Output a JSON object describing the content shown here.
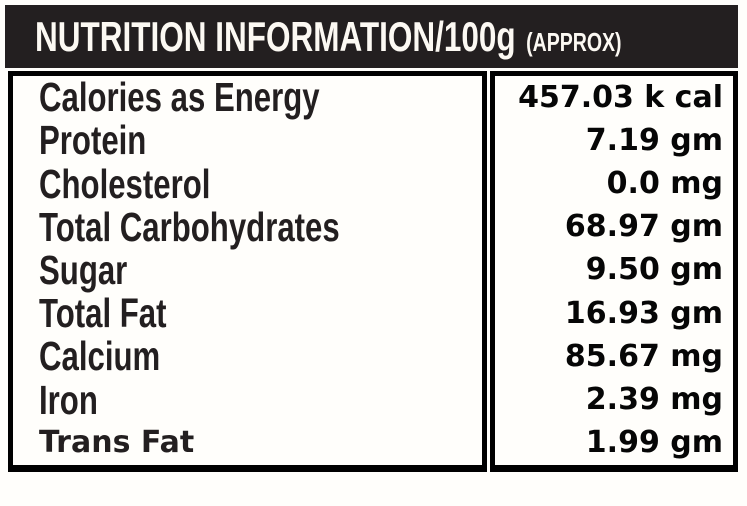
{
  "header": {
    "title": "NUTRITION INFORMATION/100g",
    "approx": "(APPROX)"
  },
  "table": {
    "rows": [
      {
        "label": "Calories as Energy",
        "value": "457.03 k cal",
        "alt_font": false
      },
      {
        "label": "Protein",
        "value": "7.19 gm",
        "alt_font": false
      },
      {
        "label": "Cholesterol",
        "value": "0.0 mg",
        "alt_font": false
      },
      {
        "label": "Total Carbohydrates",
        "value": "68.97 gm",
        "alt_font": false
      },
      {
        "label": "Sugar",
        "value": "9.50 gm",
        "alt_font": false
      },
      {
        "label": "Total Fat",
        "value": "16.93 gm",
        "alt_font": false
      },
      {
        "label": "Calcium",
        "value": "85.67 mg",
        "alt_font": false
      },
      {
        "label": "Iron",
        "value": "2.39 mg",
        "alt_font": false
      },
      {
        "label": "Trans Fat",
        "value": "1.99 gm",
        "alt_font": true
      }
    ]
  },
  "colors": {
    "header_bg": "#231f20",
    "header_text": "#fcf9f3",
    "label_text": "#231f20",
    "value_text": "#060606",
    "border": "#000000",
    "background": "#fffefb"
  }
}
